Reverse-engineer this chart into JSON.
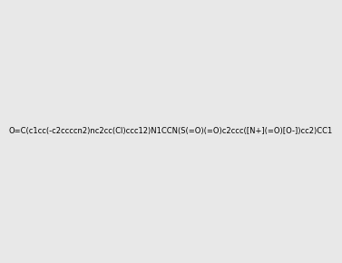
{
  "smiles": "O=C(c1cc(-c2ccccn2)nc2cc(Cl)ccc12)N1CCN(S(=O)(=O)c2ccc([N+](=O)[O-])cc2)CC1",
  "image_size": 300,
  "background_color": "#e8e8e8",
  "title": ""
}
